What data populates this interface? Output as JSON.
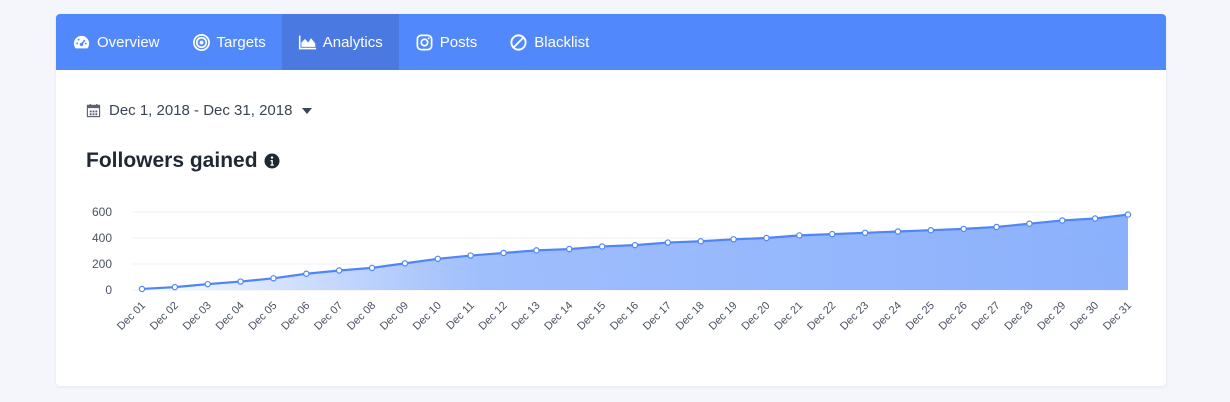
{
  "nav": {
    "tabs": [
      {
        "label": "Overview",
        "icon": "dashboard-icon"
      },
      {
        "label": "Targets",
        "icon": "target-icon"
      },
      {
        "label": "Analytics",
        "icon": "area-chart-icon",
        "active": true
      },
      {
        "label": "Posts",
        "icon": "instagram-icon"
      },
      {
        "label": "Blacklist",
        "icon": "ban-icon"
      }
    ]
  },
  "date_range": {
    "label": "Dec 1, 2018 - Dec 31, 2018"
  },
  "section": {
    "title": "Followers gained"
  },
  "colors": {
    "nav_bg": "#5189fc",
    "nav_active": "#4a79e2",
    "line": "#4f86f7",
    "fill": "#7fa8fb"
  },
  "chart_data": {
    "type": "area",
    "title": "Followers gained",
    "categories": [
      "Dec 01",
      "Dec 02",
      "Dec 03",
      "Dec 04",
      "Dec 05",
      "Dec 06",
      "Dec 07",
      "Dec 08",
      "Dec 09",
      "Dec 10",
      "Dec 11",
      "Dec 12",
      "Dec 13",
      "Dec 14",
      "Dec 15",
      "Dec 16",
      "Dec 17",
      "Dec 18",
      "Dec 19",
      "Dec 20",
      "Dec 21",
      "Dec 22",
      "Dec 23",
      "Dec 24",
      "Dec 25",
      "Dec 26",
      "Dec 27",
      "Dec 28",
      "Dec 29",
      "Dec 30",
      "Dec 31"
    ],
    "series": [
      {
        "values": [
          8,
          22,
          45,
          65,
          90,
          125,
          150,
          170,
          205,
          240,
          265,
          285,
          305,
          315,
          335,
          345,
          365,
          375,
          390,
          400,
          420,
          430,
          440,
          450,
          460,
          470,
          485,
          510,
          535,
          550,
          580
        ]
      }
    ],
    "yticks": [
      0,
      200,
      400,
      600
    ],
    "ylim": [
      0,
      600
    ],
    "grid": true,
    "legend": "none"
  }
}
